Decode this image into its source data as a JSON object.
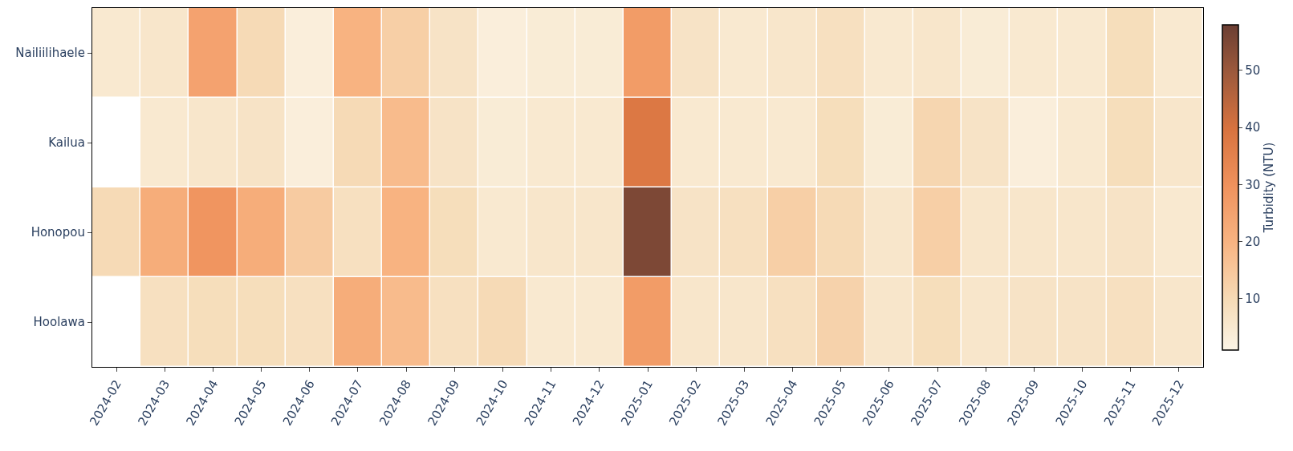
{
  "chart_data": {
    "type": "heatmap",
    "clabel": "Turbidity (NTU)",
    "categories": [
      "2024-02",
      "2024-03",
      "2024-04",
      "2024-05",
      "2024-06",
      "2024-07",
      "2024-08",
      "2024-09",
      "2024-10",
      "2024-11",
      "2024-12",
      "2025-01",
      "2025-02",
      "2025-03",
      "2025-04",
      "2025-05",
      "2025-06",
      "2025-07",
      "2025-08",
      "2025-09",
      "2025-10",
      "2025-11",
      "2025-12"
    ],
    "y_categories": [
      "Nailiilihaele",
      "Kailua",
      "Honopou",
      "Hoolawa"
    ],
    "cells": [
      [
        5,
        6,
        25,
        10,
        3,
        20,
        13,
        7,
        3,
        4,
        4,
        27,
        7,
        5,
        6,
        8,
        5,
        6,
        4,
        5,
        5,
        9,
        5
      ],
      [
        null,
        5,
        6,
        7,
        3,
        10,
        18,
        7,
        4,
        5,
        5,
        38,
        5,
        5,
        5,
        9,
        4,
        11,
        7,
        3,
        5,
        9,
        6
      ],
      [
        10,
        22,
        29,
        22,
        14,
        8,
        20,
        9,
        5,
        6,
        6,
        55,
        7,
        8,
        13,
        10,
        6,
        13,
        6,
        6,
        6,
        7,
        5
      ],
      [
        null,
        8,
        9,
        9,
        8,
        22,
        18,
        8,
        10,
        5,
        5,
        27,
        6,
        6,
        8,
        12,
        6,
        9,
        6,
        7,
        7,
        8,
        6
      ]
    ],
    "clim": [
      1,
      58
    ],
    "cticks": [
      10,
      20,
      30,
      40,
      50
    ]
  }
}
